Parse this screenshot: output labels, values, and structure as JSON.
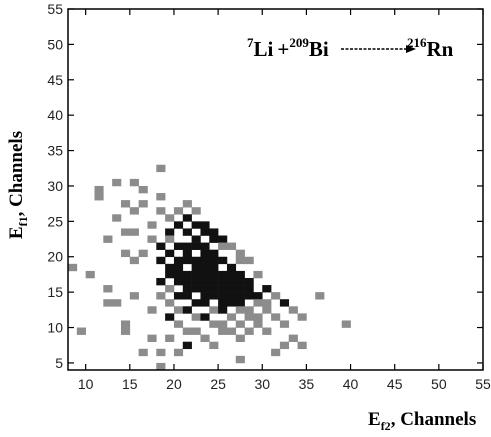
{
  "chart_data": {
    "type": "heatmap",
    "title": "",
    "annotation": {
      "li_mass": "7",
      "li_symbol": "Li",
      "plus": "+",
      "bi_mass": "209",
      "bi_symbol": "Bi",
      "rn_mass": "216",
      "rn_symbol": "Rn"
    },
    "xlabel": {
      "main": "E",
      "sub": "f2",
      "rest": ", Channels"
    },
    "ylabel": {
      "main": "E",
      "sub": "f1",
      "rest": ", Channels"
    },
    "xlim": [
      8,
      55
    ],
    "ylim": [
      4,
      55
    ],
    "xticks": [
      10,
      15,
      20,
      25,
      30,
      35,
      40,
      45,
      50,
      55
    ],
    "yticks": [
      5,
      10,
      15,
      20,
      25,
      30,
      35,
      40,
      45,
      50,
      55
    ],
    "grid": false,
    "cell_size": 1,
    "colors": {
      "high": "#111111",
      "low": "#8c8c8c",
      "axis": "#000000"
    },
    "cells": [
      [
        8,
        18,
        1
      ],
      [
        9,
        9,
        1
      ],
      [
        10,
        17,
        1
      ],
      [
        11,
        29,
        1
      ],
      [
        11,
        28,
        1
      ],
      [
        12,
        22,
        1
      ],
      [
        12,
        15,
        1
      ],
      [
        12,
        13,
        1
      ],
      [
        13,
        30,
        1
      ],
      [
        13,
        25,
        1
      ],
      [
        13,
        13,
        1
      ],
      [
        14,
        27,
        1
      ],
      [
        14,
        23,
        1
      ],
      [
        14,
        20,
        1
      ],
      [
        14,
        10,
        1
      ],
      [
        14,
        9,
        1
      ],
      [
        15,
        30,
        1
      ],
      [
        15,
        26,
        1
      ],
      [
        15,
        23,
        1
      ],
      [
        15,
        19,
        1
      ],
      [
        15,
        14,
        1
      ],
      [
        16,
        29,
        1
      ],
      [
        16,
        27,
        1
      ],
      [
        16,
        20,
        1
      ],
      [
        16,
        6,
        1
      ],
      [
        17,
        24,
        1
      ],
      [
        17,
        22,
        1
      ],
      [
        17,
        12,
        1
      ],
      [
        17,
        8,
        1
      ],
      [
        18,
        32,
        1
      ],
      [
        18,
        28,
        1
      ],
      [
        18,
        26,
        1
      ],
      [
        18,
        21,
        2
      ],
      [
        18,
        19,
        2
      ],
      [
        18,
        16,
        2
      ],
      [
        18,
        14,
        1
      ],
      [
        18,
        6,
        1
      ],
      [
        18,
        4,
        1
      ],
      [
        19,
        25,
        1
      ],
      [
        19,
        23,
        2
      ],
      [
        19,
        22,
        1
      ],
      [
        19,
        20,
        2
      ],
      [
        19,
        18,
        2
      ],
      [
        19,
        17,
        2
      ],
      [
        19,
        15,
        1
      ],
      [
        19,
        13,
        1
      ],
      [
        19,
        11,
        2
      ],
      [
        19,
        8,
        1
      ],
      [
        20,
        26,
        1
      ],
      [
        20,
        24,
        2
      ],
      [
        20,
        21,
        2
      ],
      [
        20,
        19,
        2
      ],
      [
        20,
        18,
        2
      ],
      [
        20,
        17,
        2
      ],
      [
        20,
        16,
        2
      ],
      [
        20,
        14,
        2
      ],
      [
        20,
        12,
        1
      ],
      [
        20,
        10,
        1
      ],
      [
        20,
        6,
        1
      ],
      [
        21,
        27,
        1
      ],
      [
        21,
        25,
        2
      ],
      [
        21,
        23,
        2
      ],
      [
        21,
        21,
        2
      ],
      [
        21,
        20,
        2
      ],
      [
        21,
        19,
        2
      ],
      [
        21,
        17,
        2
      ],
      [
        21,
        16,
        2
      ],
      [
        21,
        15,
        2
      ],
      [
        21,
        14,
        2
      ],
      [
        21,
        12,
        2
      ],
      [
        21,
        9,
        1
      ],
      [
        21,
        7,
        2
      ],
      [
        22,
        26,
        1
      ],
      [
        22,
        24,
        2
      ],
      [
        22,
        22,
        2
      ],
      [
        22,
        21,
        2
      ],
      [
        22,
        19,
        2
      ],
      [
        22,
        18,
        2
      ],
      [
        22,
        17,
        2
      ],
      [
        22,
        16,
        2
      ],
      [
        22,
        15,
        2
      ],
      [
        22,
        13,
        2
      ],
      [
        22,
        11,
        1
      ],
      [
        22,
        9,
        1
      ],
      [
        23,
        24,
        2
      ],
      [
        23,
        23,
        2
      ],
      [
        23,
        21,
        2
      ],
      [
        23,
        20,
        2
      ],
      [
        23,
        19,
        2
      ],
      [
        23,
        18,
        2
      ],
      [
        23,
        17,
        2
      ],
      [
        23,
        16,
        2
      ],
      [
        23,
        15,
        2
      ],
      [
        23,
        14,
        2
      ],
      [
        23,
        13,
        2
      ],
      [
        23,
        11,
        2
      ],
      [
        23,
        8,
        1
      ],
      [
        24,
        23,
        2
      ],
      [
        24,
        22,
        2
      ],
      [
        24,
        20,
        2
      ],
      [
        24,
        19,
        2
      ],
      [
        24,
        18,
        2
      ],
      [
        24,
        17,
        2
      ],
      [
        24,
        16,
        2
      ],
      [
        24,
        15,
        2
      ],
      [
        24,
        14,
        2
      ],
      [
        24,
        12,
        1
      ],
      [
        24,
        10,
        1
      ],
      [
        24,
        7,
        1
      ],
      [
        25,
        22,
        2
      ],
      [
        25,
        21,
        1
      ],
      [
        25,
        19,
        2
      ],
      [
        25,
        17,
        2
      ],
      [
        25,
        16,
        2
      ],
      [
        25,
        15,
        2
      ],
      [
        25,
        14,
        2
      ],
      [
        25,
        13,
        2
      ],
      [
        25,
        12,
        2
      ],
      [
        25,
        10,
        1
      ],
      [
        25,
        9,
        1
      ],
      [
        26,
        21,
        1
      ],
      [
        26,
        18,
        2
      ],
      [
        26,
        17,
        2
      ],
      [
        26,
        16,
        2
      ],
      [
        26,
        15,
        2
      ],
      [
        26,
        14,
        2
      ],
      [
        26,
        13,
        2
      ],
      [
        26,
        11,
        1
      ],
      [
        26,
        9,
        1
      ],
      [
        27,
        20,
        1
      ],
      [
        27,
        19,
        1
      ],
      [
        27,
        17,
        2
      ],
      [
        27,
        16,
        2
      ],
      [
        27,
        15,
        2
      ],
      [
        27,
        14,
        2
      ],
      [
        27,
        13,
        2
      ],
      [
        27,
        12,
        1
      ],
      [
        27,
        10,
        1
      ],
      [
        27,
        8,
        1
      ],
      [
        27,
        5,
        1
      ],
      [
        28,
        19,
        1
      ],
      [
        28,
        16,
        2
      ],
      [
        28,
        15,
        2
      ],
      [
        28,
        14,
        2
      ],
      [
        28,
        12,
        1
      ],
      [
        28,
        11,
        1
      ],
      [
        28,
        9,
        1
      ],
      [
        29,
        17,
        1
      ],
      [
        29,
        14,
        2
      ],
      [
        29,
        13,
        1
      ],
      [
        29,
        11,
        1
      ],
      [
        29,
        10,
        1
      ],
      [
        30,
        15,
        2
      ],
      [
        30,
        13,
        1
      ],
      [
        30,
        12,
        1
      ],
      [
        30,
        9,
        1
      ],
      [
        31,
        14,
        1
      ],
      [
        31,
        11,
        1
      ],
      [
        31,
        6,
        1
      ],
      [
        32,
        13,
        2
      ],
      [
        32,
        10,
        1
      ],
      [
        32,
        7,
        1
      ],
      [
        33,
        12,
        1
      ],
      [
        33,
        8,
        1
      ],
      [
        34,
        11,
        1
      ],
      [
        34,
        7,
        1
      ],
      [
        36,
        14,
        1
      ],
      [
        39,
        10,
        1
      ]
    ]
  }
}
